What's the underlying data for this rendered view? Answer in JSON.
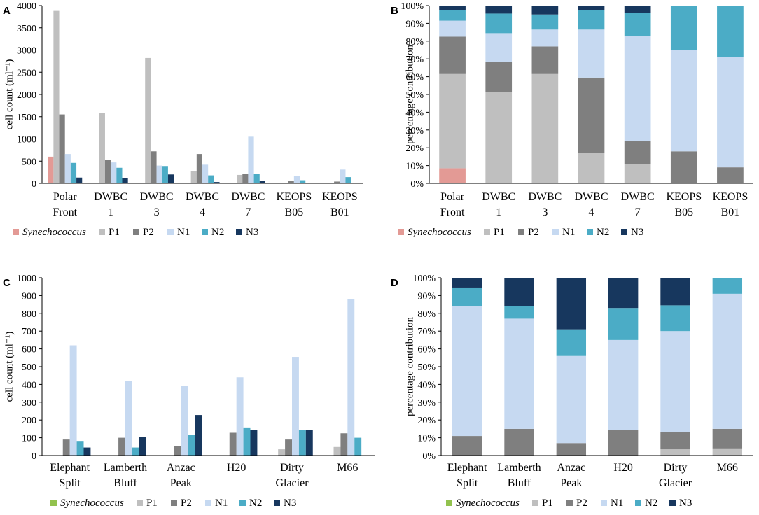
{
  "colors": {
    "Synechococcus_AB": "#e39a95",
    "Synechococcus_CD": "#92c24e",
    "P1": "#bfbfbf",
    "P2": "#7f7f7f",
    "N1": "#c6d9f1",
    "N2": "#4bacc6",
    "N3": "#17375e"
  },
  "chart_data": [
    {
      "panel": "A",
      "type": "bar",
      "ylabel": "cell count (ml⁻¹)",
      "ylim": [
        0,
        4000
      ],
      "yticks": [
        "0",
        "500",
        "1000",
        "1500",
        "2000",
        "2500",
        "3000",
        "3500",
        "4000"
      ],
      "categories": [
        [
          "Polar",
          "Front"
        ],
        [
          "DWBC",
          "1"
        ],
        [
          "DWBC",
          "3"
        ],
        [
          "DWBC",
          "4"
        ],
        [
          "DWBC",
          "7"
        ],
        [
          "KEOPS",
          "B05"
        ],
        [
          "KEOPS",
          "B01"
        ]
      ],
      "series": [
        {
          "name": "Synechococcus",
          "values": [
            600,
            0,
            0,
            0,
            0,
            0,
            0
          ]
        },
        {
          "name": "P1",
          "values": [
            3880,
            1590,
            2820,
            270,
            190,
            0,
            0
          ]
        },
        {
          "name": "P2",
          "values": [
            1550,
            530,
            720,
            660,
            220,
            50,
            40
          ]
        },
        {
          "name": "N1",
          "values": [
            660,
            470,
            400,
            420,
            1050,
            170,
            310
          ]
        },
        {
          "name": "N2",
          "values": [
            460,
            350,
            390,
            180,
            220,
            70,
            140
          ]
        },
        {
          "name": "N3",
          "values": [
            130,
            120,
            200,
            30,
            60,
            0,
            0
          ]
        }
      ]
    },
    {
      "panel": "B",
      "type": "bar",
      "stacked": true,
      "ylabel": "percentage contribution",
      "ylim": [
        0,
        100
      ],
      "yticks": [
        "0%",
        "10%",
        "20%",
        "30%",
        "40%",
        "50%",
        "60%",
        "70%",
        "80%",
        "90%",
        "100%"
      ],
      "categories": [
        [
          "Polar",
          "Front"
        ],
        [
          "DWBC",
          "1"
        ],
        [
          "DWBC",
          "3"
        ],
        [
          "DWBC",
          "4"
        ],
        [
          "DWBC",
          "7"
        ],
        [
          "KEOPS",
          "B05"
        ],
        [
          "KEOPS",
          "B01"
        ]
      ],
      "series": [
        {
          "name": "Synechococcus",
          "values": [
            8.5,
            0,
            0,
            0,
            0,
            0,
            0
          ]
        },
        {
          "name": "P1",
          "values": [
            53,
            51.5,
            61.5,
            17,
            11,
            0,
            0
          ]
        },
        {
          "name": "P2",
          "values": [
            21,
            17,
            15.5,
            42.5,
            13,
            18,
            9
          ]
        },
        {
          "name": "N1",
          "values": [
            9,
            16,
            9.5,
            27,
            59,
            57,
            62
          ]
        },
        {
          "name": "N2",
          "values": [
            6,
            11,
            8.5,
            11,
            13,
            25,
            29
          ]
        },
        {
          "name": "N3",
          "values": [
            2.5,
            4.5,
            5,
            2.5,
            4,
            0,
            0
          ]
        }
      ]
    },
    {
      "panel": "C",
      "type": "bar",
      "ylabel": "cell count (ml⁻¹)",
      "ylim": [
        0,
        1000
      ],
      "yticks": [
        "0",
        "100",
        "200",
        "300",
        "400",
        "500",
        "600",
        "700",
        "800",
        "900",
        "1000"
      ],
      "categories": [
        [
          "Elephant",
          "Split"
        ],
        [
          "Lamberth",
          "Bluff"
        ],
        [
          "Anzac",
          "Peak"
        ],
        [
          "H20"
        ],
        [
          "Dirty",
          "Glacier"
        ],
        [
          "M66"
        ]
      ],
      "series": [
        {
          "name": "Synechococcus",
          "values": [
            0,
            0,
            0,
            0,
            0,
            0
          ]
        },
        {
          "name": "P1",
          "values": [
            0,
            0,
            0,
            0,
            35,
            48
          ]
        },
        {
          "name": "P2",
          "values": [
            90,
            100,
            55,
            128,
            90,
            125
          ]
        },
        {
          "name": "N1",
          "values": [
            620,
            420,
            390,
            440,
            555,
            880
          ]
        },
        {
          "name": "N2",
          "values": [
            82,
            45,
            118,
            158,
            145,
            100
          ]
        },
        {
          "name": "N3",
          "values": [
            45,
            105,
            228,
            145,
            145,
            0
          ]
        }
      ]
    },
    {
      "panel": "D",
      "type": "bar",
      "stacked": true,
      "ylabel": "percentage contribution",
      "ylim": [
        0,
        100
      ],
      "yticks": [
        "0%",
        "10%",
        "20%",
        "30%",
        "40%",
        "50%",
        "60%",
        "70%",
        "80%",
        "90%",
        "100%"
      ],
      "categories": [
        [
          "Elephant",
          "Split"
        ],
        [
          "Lamberth",
          "Bluff"
        ],
        [
          "Anzac",
          "Peak"
        ],
        [
          "H20"
        ],
        [
          "Dirty",
          "Glacier"
        ],
        [
          "M66"
        ]
      ],
      "series": [
        {
          "name": "Synechococcus",
          "values": [
            0,
            0,
            0,
            0,
            0,
            0
          ]
        },
        {
          "name": "P1",
          "values": [
            0,
            0,
            0,
            0,
            3.5,
            4
          ]
        },
        {
          "name": "P2",
          "values": [
            11,
            15,
            7,
            14.5,
            9.5,
            11
          ]
        },
        {
          "name": "N1",
          "values": [
            73,
            62,
            49,
            50.5,
            57,
            76
          ]
        },
        {
          "name": "N2",
          "values": [
            10.5,
            7,
            15,
            18,
            14.5,
            9
          ]
        },
        {
          "name": "N3",
          "values": [
            5.5,
            16,
            29,
            17,
            15.5,
            0
          ]
        }
      ]
    }
  ]
}
